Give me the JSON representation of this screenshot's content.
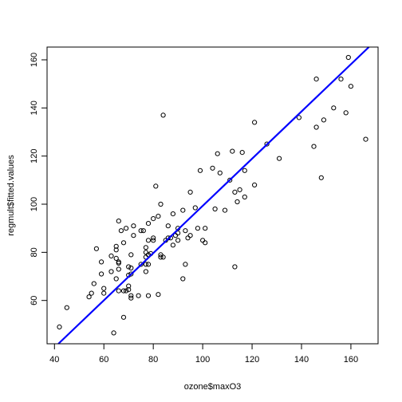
{
  "chart_data": {
    "type": "scatter",
    "title": "",
    "xlabel": "ozone$maxO3",
    "ylabel": "regmult$fitted.values",
    "xlim": [
      37.0,
      171.0
    ],
    "ylim": [
      42.0,
      165.3
    ],
    "xticks": [
      "40",
      "60",
      "80",
      "100",
      "120",
      "140",
      "160"
    ],
    "yticks": [
      "60",
      "80",
      "100",
      "120",
      "140",
      "160"
    ],
    "grid": false,
    "colors": {
      "points": "#000000",
      "line": "#0000ff",
      "axis": "#000000"
    },
    "series": [
      {
        "type": "scatter",
        "points": [
          [
            42,
            49
          ],
          [
            45,
            57
          ],
          [
            54,
            61.5
          ],
          [
            55,
            63
          ],
          [
            56,
            67
          ],
          [
            57,
            81.5
          ],
          [
            59,
            71
          ],
          [
            59,
            76
          ],
          [
            60,
            63
          ],
          [
            60,
            65
          ],
          [
            63,
            72
          ],
          [
            63,
            78.5
          ],
          [
            64,
            46.5
          ],
          [
            65,
            69
          ],
          [
            65,
            77.5
          ],
          [
            65,
            81
          ],
          [
            65,
            82.5
          ],
          [
            66,
            64
          ],
          [
            66,
            73
          ],
          [
            66,
            75.5
          ],
          [
            66,
            76
          ],
          [
            66,
            93
          ],
          [
            67,
            89
          ],
          [
            68,
            53
          ],
          [
            68,
            64
          ],
          [
            68,
            84
          ],
          [
            69,
            64
          ],
          [
            69,
            90
          ],
          [
            70,
            70.5
          ],
          [
            70,
            66
          ],
          [
            70,
            74
          ],
          [
            70,
            64.5
          ],
          [
            71,
            62
          ],
          [
            71,
            61
          ],
          [
            71,
            71
          ],
          [
            71,
            73.5
          ],
          [
            71,
            79
          ],
          [
            72,
            87
          ],
          [
            72,
            91
          ],
          [
            74,
            62
          ],
          [
            75,
            75
          ],
          [
            75,
            89
          ],
          [
            76,
            89
          ],
          [
            77,
            72
          ],
          [
            77,
            78
          ],
          [
            77,
            75
          ],
          [
            77,
            82
          ],
          [
            77,
            80
          ],
          [
            78,
            79
          ],
          [
            78,
            92
          ],
          [
            78,
            85
          ],
          [
            78,
            75
          ],
          [
            78,
            62
          ],
          [
            79,
            79.5
          ],
          [
            80,
            85
          ],
          [
            80,
            94
          ],
          [
            80,
            86
          ],
          [
            81,
            107.5
          ],
          [
            82,
            62.5
          ],
          [
            82,
            95
          ],
          [
            83,
            100
          ],
          [
            83,
            79
          ],
          [
            83,
            78
          ],
          [
            84,
            137
          ],
          [
            84,
            78
          ],
          [
            85,
            85
          ],
          [
            86,
            86
          ],
          [
            86,
            91
          ],
          [
            87,
            86
          ],
          [
            88,
            96
          ],
          [
            88,
            83
          ],
          [
            89,
            87
          ],
          [
            90,
            90
          ],
          [
            90,
            85
          ],
          [
            90,
            88
          ],
          [
            92,
            97.5
          ],
          [
            92,
            69
          ],
          [
            93,
            75
          ],
          [
            93,
            89
          ],
          [
            94,
            86
          ],
          [
            95,
            105
          ],
          [
            95,
            87
          ],
          [
            97,
            98.5
          ],
          [
            98,
            90
          ],
          [
            99,
            114
          ],
          [
            100,
            85
          ],
          [
            101,
            90
          ],
          [
            101,
            84
          ],
          [
            104,
            115
          ],
          [
            105,
            98
          ],
          [
            106,
            121
          ],
          [
            107,
            113
          ],
          [
            109,
            97.5
          ],
          [
            111,
            110
          ],
          [
            112,
            122
          ],
          [
            113,
            105
          ],
          [
            113,
            74
          ],
          [
            114,
            101
          ],
          [
            115,
            106
          ],
          [
            116,
            121.5
          ],
          [
            117,
            114
          ],
          [
            117,
            103
          ],
          [
            121,
            134
          ],
          [
            121,
            108
          ],
          [
            126,
            125
          ],
          [
            131,
            119
          ],
          [
            139,
            136
          ],
          [
            145,
            124
          ],
          [
            146,
            132
          ],
          [
            146,
            152
          ],
          [
            148,
            111
          ],
          [
            149,
            135
          ],
          [
            153,
            140
          ],
          [
            156,
            152
          ],
          [
            158,
            138
          ],
          [
            159,
            161
          ],
          [
            160,
            149
          ],
          [
            166,
            127
          ]
        ]
      },
      {
        "type": "line",
        "x": [
          41.6,
          167.3
        ],
        "y": [
          42.0,
          165.3
        ]
      }
    ]
  }
}
